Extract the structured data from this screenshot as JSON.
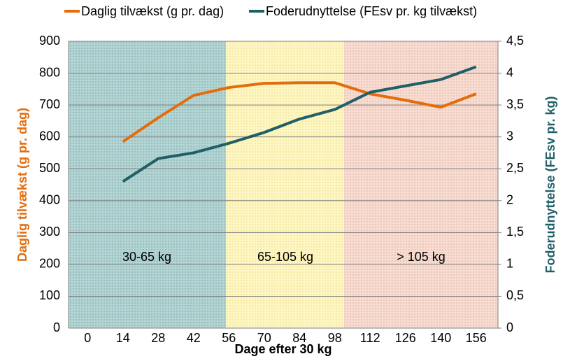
{
  "chart_data": {
    "type": "line",
    "x_label": "Dage efter 30 kg",
    "y_label": "Daglig tilvækst (g pr. dag)",
    "y2_label": "Foderudnyttelse (FEsv pr. kg)",
    "categories": [
      "0",
      "14",
      "28",
      "42",
      "56",
      "70",
      "84",
      "98",
      "112",
      "126",
      "140",
      "156"
    ],
    "series": [
      {
        "name": "Daglig tilvækst (g pr. dag)",
        "color": "#e46c0a",
        "values": [
          null,
          585,
          660,
          730,
          755,
          768,
          770,
          770,
          735,
          715,
          693,
          735
        ]
      },
      {
        "name": "Foderudnyttelse (FEsv pr. kg tilvækst)",
        "color": "#215f66",
        "axis": "y2",
        "values": [
          null,
          2.3,
          2.66,
          2.75,
          2.9,
          3.07,
          3.28,
          3.43,
          3.7,
          3.8,
          3.9,
          4.1
        ]
      }
    ],
    "ylim": [
      0,
      900
    ],
    "yticks": [
      0,
      100,
      200,
      300,
      400,
      500,
      600,
      700,
      800,
      900
    ],
    "y2lim": [
      0,
      4.5
    ],
    "y2ticks": [
      0,
      {
        "value": 0.5,
        "label": "0,5"
      },
      1,
      {
        "value": 1.5,
        "label": "1,5"
      },
      2,
      {
        "value": 2.5,
        "label": "2,5"
      },
      3,
      {
        "value": 3.5,
        "label": "3,5"
      },
      4,
      {
        "value": 4.5,
        "label": "4,5"
      }
    ],
    "grid": true,
    "annotations": [
      "30-65 kg",
      "65-105 kg",
      "> 105 kg"
    ]
  }
}
